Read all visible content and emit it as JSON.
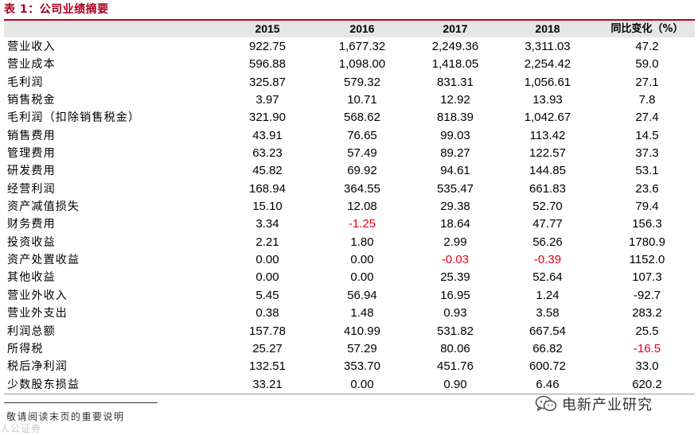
{
  "title": "表 1：公司业绩摘要",
  "headers": [
    "2015",
    "2016",
    "2017",
    "2018",
    "同比变化（%）"
  ],
  "rows": [
    {
      "label": "营业收入",
      "values": [
        "922.75",
        "1,677.32",
        "2,249.36",
        "3,311.03",
        "47.2"
      ]
    },
    {
      "label": "营业成本",
      "values": [
        "596.88",
        "1,098.00",
        "1,418.05",
        "2,254.42",
        "59.0"
      ]
    },
    {
      "label": "毛利润",
      "values": [
        "325.87",
        "579.32",
        "831.31",
        "1,056.61",
        "27.1"
      ]
    },
    {
      "label": "销售税金",
      "values": [
        "3.97",
        "10.71",
        "12.92",
        "13.93",
        "7.8"
      ]
    },
    {
      "label": "毛利润（扣除销售税金）",
      "values": [
        "321.90",
        "568.62",
        "818.39",
        "1,042.67",
        "27.4"
      ]
    },
    {
      "label": "销售费用",
      "values": [
        "43.91",
        "76.65",
        "99.03",
        "113.42",
        "14.5"
      ]
    },
    {
      "label": "管理费用",
      "values": [
        "63.23",
        "57.49",
        "89.27",
        "122.57",
        "37.3"
      ]
    },
    {
      "label": "研发费用",
      "values": [
        "45.82",
        "69.92",
        "94.61",
        "144.85",
        "53.1"
      ]
    },
    {
      "label": "经营利润",
      "values": [
        "168.94",
        "364.55",
        "535.47",
        "661.83",
        "23.6"
      ]
    },
    {
      "label": "资产减值损失",
      "values": [
        "15.10",
        "12.08",
        "29.38",
        "52.70",
        "79.4"
      ]
    },
    {
      "label": "财务费用",
      "values": [
        "3.34",
        "-1.25",
        "18.64",
        "47.77",
        "156.3"
      ]
    },
    {
      "label": "投资收益",
      "values": [
        "2.21",
        "1.80",
        "2.99",
        "56.26",
        "1780.9"
      ]
    },
    {
      "label": "资产处置收益",
      "values": [
        "0.00",
        "0.00",
        "-0.03",
        "-0.39",
        "1152.0"
      ]
    },
    {
      "label": "其他收益",
      "values": [
        "0.00",
        "0.00",
        "25.39",
        "52.64",
        "107.3"
      ]
    },
    {
      "label": "营业外收入",
      "values": [
        "5.45",
        "56.94",
        "16.95",
        "1.24",
        "-92.7"
      ]
    },
    {
      "label": "营业外支出",
      "values": [
        "0.38",
        "1.48",
        "0.93",
        "3.58",
        "283.2"
      ]
    },
    {
      "label": "利润总额",
      "values": [
        "157.78",
        "410.99",
        "531.82",
        "667.54",
        "25.5"
      ]
    },
    {
      "label": "所得税",
      "values": [
        "25.27",
        "57.29",
        "80.06",
        "66.82",
        "-16.5"
      ]
    },
    {
      "label": "税后净利润",
      "values": [
        "132.51",
        "353.70",
        "451.76",
        "600.72",
        "33.0"
      ]
    },
    {
      "label": "少数股东损益",
      "values": [
        "33.21",
        "0.00",
        "0.90",
        "6.46",
        "620.2"
      ]
    }
  ],
  "red_negative_cells": [
    [
      10,
      1
    ],
    [
      12,
      2
    ],
    [
      12,
      3
    ],
    [
      17,
      4
    ]
  ],
  "watermark": "电新产业研究",
  "footer_note": "敬请阅读末页的重要说明",
  "faint_logo_text": "人公证券",
  "colors": {
    "title": "#a8001e",
    "rule": "#b3001b",
    "header_bg": "#e6e6e6",
    "negative": "#e3001b"
  }
}
